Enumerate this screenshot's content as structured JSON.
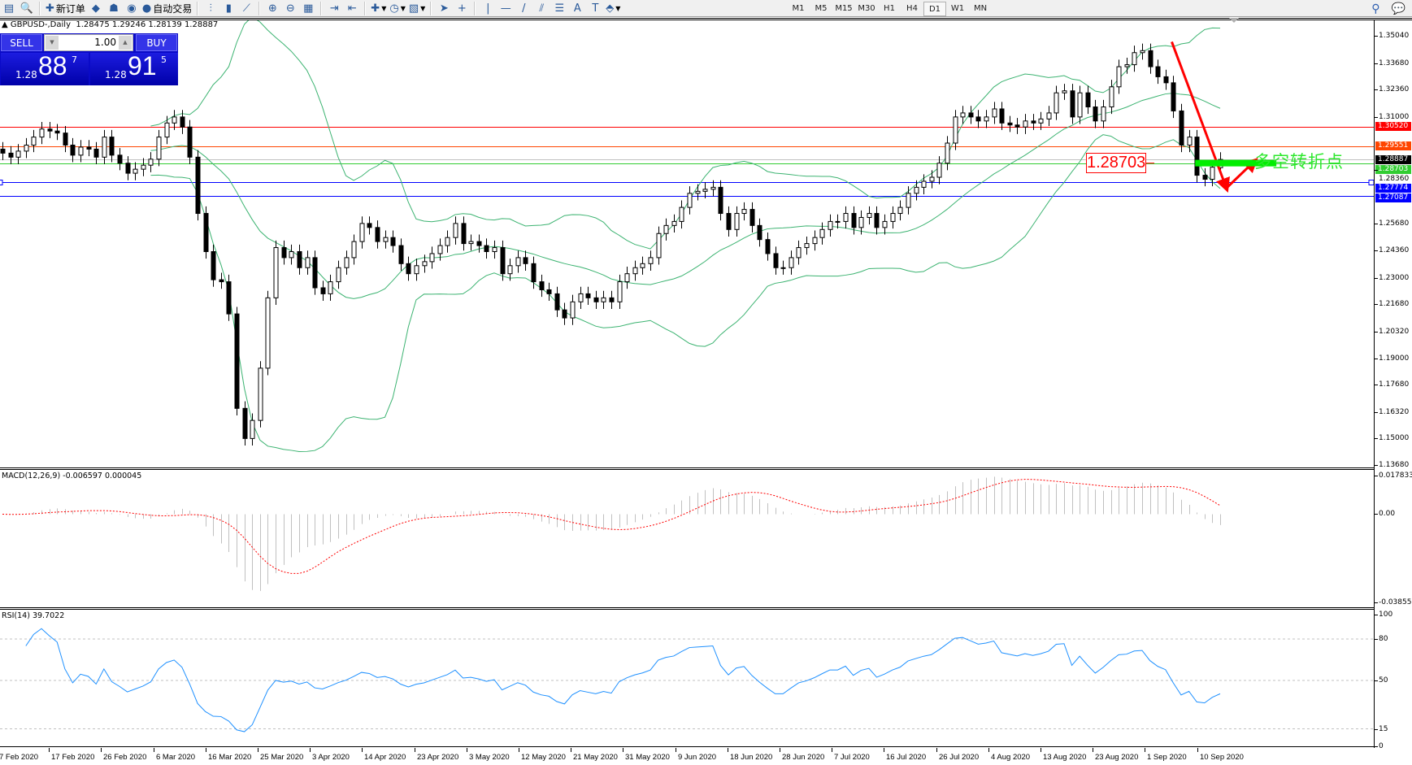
{
  "toolbar": {
    "items": [
      {
        "icon": "new-chart-icon",
        "glyph": "▤"
      },
      {
        "icon": "profiles-icon",
        "glyph": "🔍"
      },
      {
        "sep": true
      },
      {
        "icon": "new-order-icon",
        "glyph": "✚",
        "label": "新订单"
      },
      {
        "icon": "metaeditor-icon",
        "glyph": "◆"
      },
      {
        "icon": "strategy-tester-icon",
        "glyph": "☗"
      },
      {
        "icon": "signals-icon",
        "glyph": "◉"
      },
      {
        "icon": "autotrading-icon",
        "glyph": "●",
        "label": "自动交易"
      },
      {
        "sep": true
      },
      {
        "icon": "bar-chart-icon",
        "glyph": "⫶"
      },
      {
        "icon": "candlesticks-icon",
        "glyph": "▮"
      },
      {
        "icon": "line-chart-icon",
        "glyph": "⟋"
      },
      {
        "sep": true
      },
      {
        "icon": "zoom-in-icon",
        "glyph": "⊕"
      },
      {
        "icon": "zoom-out-icon",
        "glyph": "⊖"
      },
      {
        "icon": "tile-windows-icon",
        "glyph": "▦"
      },
      {
        "sep": true
      },
      {
        "icon": "auto-scroll-icon",
        "glyph": "⇥"
      },
      {
        "icon": "chart-shift-icon",
        "glyph": "⇤"
      },
      {
        "sep": true
      },
      {
        "icon": "indicators-icon",
        "glyph": "✚",
        "dropdown": true
      },
      {
        "icon": "periods-icon",
        "glyph": "◷",
        "dropdown": true
      },
      {
        "icon": "templates-icon",
        "glyph": "▧",
        "dropdown": true
      },
      {
        "sep": true
      },
      {
        "icon": "cursor-icon",
        "glyph": "➤"
      },
      {
        "icon": "crosshair-icon",
        "glyph": "+"
      },
      {
        "sep": true
      },
      {
        "icon": "vertical-line-icon",
        "glyph": "|"
      },
      {
        "icon": "horizontal-line-icon",
        "glyph": "—"
      },
      {
        "icon": "trendline-icon",
        "glyph": "/"
      },
      {
        "icon": "equidistant-channel-icon",
        "glyph": "⫽"
      },
      {
        "icon": "fibonacci-icon",
        "glyph": "☰"
      },
      {
        "icon": "text-icon",
        "glyph": "A"
      },
      {
        "icon": "text-label-icon",
        "glyph": "T"
      },
      {
        "icon": "arrows-icon",
        "glyph": "⬘",
        "dropdown": true
      }
    ],
    "timeframes": [
      "M1",
      "M5",
      "M15",
      "M30",
      "H1",
      "H4",
      "D1",
      "W1",
      "MN"
    ],
    "active_timeframe": "D1",
    "right_icons": [
      {
        "icon": "search-icon",
        "glyph": "⚲"
      },
      {
        "icon": "chat-icon",
        "glyph": "💬"
      }
    ]
  },
  "chart": {
    "title_arrow": "▲",
    "title": "GBPUSD-,Daily  1.28475 1.29246 1.28139 1.28887",
    "symbol": "GBPUSD-",
    "timeframe": "Daily",
    "last_bar": {
      "open": 1.28475,
      "high": 1.29246,
      "low": 1.28139,
      "close": 1.28887
    }
  },
  "trade_panel": {
    "sell_label": "SELL",
    "buy_label": "BUY",
    "lot": "1.00",
    "sell_prefix": "1.28",
    "sell_big": "88",
    "sell_sup": "7",
    "buy_prefix": "1.28",
    "buy_big": "91",
    "buy_sup": "5"
  },
  "chart_data": {
    "type": "candlestick",
    "closes": [
      1.292,
      1.29,
      1.293,
      1.296,
      1.3,
      1.304,
      1.303,
      1.302,
      1.296,
      1.291,
      1.295,
      1.294,
      1.29,
      1.3,
      1.291,
      1.287,
      1.282,
      1.284,
      1.286,
      1.289,
      1.3,
      1.307,
      1.31,
      1.305,
      1.29,
      1.262,
      1.243,
      1.229,
      1.228,
      1.212,
      1.165,
      1.15,
      1.159,
      1.185,
      1.22,
      1.245,
      1.24,
      1.243,
      1.235,
      1.24,
      1.225,
      1.222,
      1.228,
      1.235,
      1.24,
      1.248,
      1.257,
      1.255,
      1.248,
      1.25,
      1.246,
      1.237,
      1.232,
      1.236,
      1.238,
      1.242,
      1.246,
      1.25,
      1.257,
      1.247,
      1.248,
      1.246,
      1.243,
      1.245,
      1.232,
      1.236,
      1.24,
      1.237,
      1.228,
      1.224,
      1.222,
      1.214,
      1.21,
      1.218,
      1.222,
      1.22,
      1.218,
      1.22,
      1.218,
      1.228,
      1.232,
      1.235,
      1.237,
      1.24,
      1.252,
      1.256,
      1.258,
      1.265,
      1.272,
      1.273,
      1.274,
      1.275,
      1.262,
      1.254,
      1.262,
      1.264,
      1.256,
      1.249,
      1.242,
      1.235,
      1.235,
      1.24,
      1.245,
      1.247,
      1.25,
      1.254,
      1.258,
      1.258,
      1.262,
      1.255,
      1.26,
      1.262,
      1.255,
      1.258,
      1.262,
      1.265,
      1.272,
      1.275,
      1.278,
      1.28,
      1.287,
      1.297,
      1.31,
      1.312,
      1.31,
      1.308,
      1.31,
      1.314,
      1.307,
      1.306,
      1.305,
      1.308,
      1.307,
      1.309,
      1.312,
      1.322,
      1.323,
      1.31,
      1.322,
      1.315,
      1.308,
      1.315,
      1.325,
      1.335,
      1.336,
      1.342,
      1.343,
      1.335,
      1.33,
      1.327,
      1.313,
      1.296,
      1.3,
      1.281,
      1.279,
      1.285,
      1.28887
    ],
    "price_range": [
      1.1368,
      1.3504
    ],
    "price_ticks": [
      "1.35040",
      "1.33680",
      "1.32360",
      "1.31000",
      "1.28360",
      "1.25680",
      "1.24360",
      "1.23000",
      "1.21680",
      "1.20320",
      "1.19000",
      "1.17680",
      "1.16320",
      "1.15000",
      "1.13680"
    ],
    "date_labels": [
      "7 Feb 2020",
      "17 Feb 2020",
      "26 Feb 2020",
      "6 Mar 2020",
      "16 Mar 2020",
      "25 Mar 2020",
      "3 Apr 2020",
      "14 Apr 2020",
      "23 Apr 2020",
      "3 May 2020",
      "12 May 2020",
      "21 May 2020",
      "31 May 2020",
      "9 Jun 2020",
      "18 Jun 2020",
      "28 Jun 2020",
      "7 Jul 2020",
      "16 Jul 2020",
      "26 Jul 2020",
      "4 Aug 2020",
      "13 Aug 2020",
      "23 Aug 2020",
      "1 Sep 2020",
      "10 Sep 2020"
    ],
    "indicators": {
      "bollinger": {
        "period": 20,
        "deviation": 2,
        "color": "#3cb371"
      },
      "macd": {
        "label": "MACD(12,26,9) -0.006597 0.000045",
        "fast": 12,
        "slow": 26,
        "signal": 9,
        "range": [
          -0.038559,
          0.017833
        ],
        "ticks": [
          "0.017833",
          "0.00",
          "-0.038559"
        ],
        "hist_color": "#c0c0c0",
        "signal_color": "#ff0000"
      },
      "rsi": {
        "label": "RSI(14) 39.7022",
        "period": 14,
        "levels": [
          80,
          50,
          15
        ],
        "ticks": [
          "100",
          "80",
          "50",
          "15",
          "0"
        ],
        "color": "#1e90ff"
      }
    },
    "horizontal_lines": [
      {
        "price": 1.3052,
        "label": "1.30520",
        "color": "#ff0000"
      },
      {
        "price": 1.29551,
        "label": "1.29551",
        "color": "#ff4500"
      },
      {
        "price": 1.28887,
        "label": "1.28887",
        "color": "#000000",
        "line": "#c0c0c0"
      },
      {
        "price": 1.28703,
        "label": "1.28703",
        "color": "#32cd32"
      },
      {
        "price": 1.27774,
        "label": "1.27774",
        "color": "#0000ff"
      },
      {
        "price": 1.27087,
        "label": "1.27087",
        "color": "#0000ff"
      }
    ],
    "annotations": {
      "arrow_path": [
        {
          "bar": 149.8,
          "price": 1.3474
        },
        {
          "bar": 156.8,
          "price": 1.2746
        },
        {
          "bar": 160.4,
          "price": 1.288
        }
      ],
      "arrow_color": "#ff0000",
      "pivot_bar_from": 152.8,
      "pivot_bar_to": 163.2,
      "pivot_price": 1.28703,
      "pivot_color": "#00ee00",
      "box_label": "1.28703",
      "pivot_text": "多空转折点"
    }
  }
}
